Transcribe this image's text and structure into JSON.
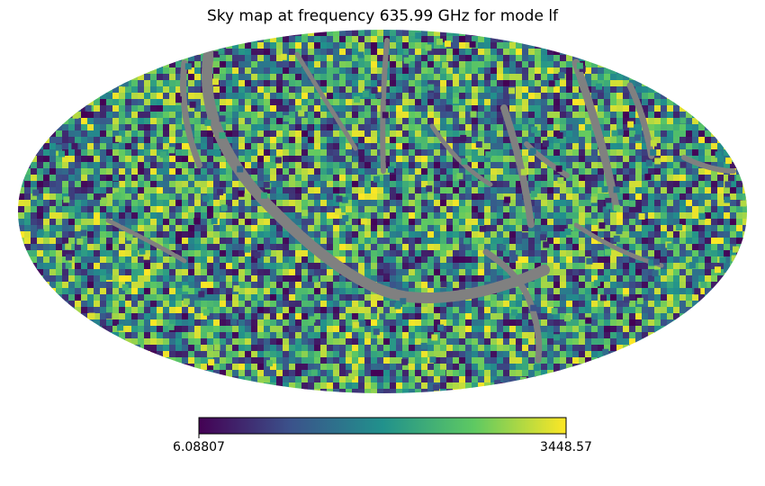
{
  "chart_data": {
    "type": "heatmap",
    "projection": "mollweide",
    "title": "Sky map at frequency 635.99 GHz for mode lf",
    "colormap": "viridis",
    "bad_value_color": "#808080",
    "colorbar": {
      "min": 6.08807,
      "max": 3448.57,
      "min_label": "6.08807",
      "max_label": "3448.57",
      "orientation": "horizontal"
    },
    "colormap_stops": [
      "#440154",
      "#3b528b",
      "#21918c",
      "#5ec962",
      "#fde725"
    ]
  }
}
